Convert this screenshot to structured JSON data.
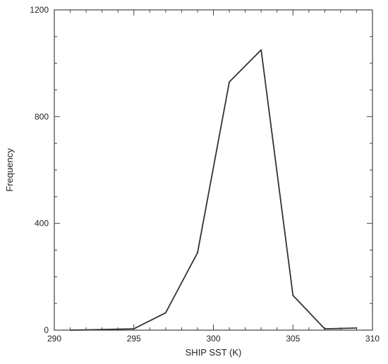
{
  "chart_data": {
    "type": "line",
    "title": "",
    "xlabel": "SHIP SST (K)",
    "ylabel": "Frequency",
    "xlim": [
      290,
      310
    ],
    "ylim": [
      0,
      1200
    ],
    "grid": false,
    "x_ticks": [
      290,
      295,
      300,
      305,
      310
    ],
    "y_ticks": [
      0,
      400,
      800,
      1200
    ],
    "x_minor_step": 1,
    "y_minor_step": 100,
    "series": [
      {
        "color": "#333333",
        "x": [
          291,
          293,
          295,
          297,
          299,
          301,
          303,
          305,
          307,
          309
        ],
        "y": [
          0,
          2,
          5,
          65,
          290,
          930,
          1050,
          130,
          5,
          8
        ]
      }
    ]
  }
}
